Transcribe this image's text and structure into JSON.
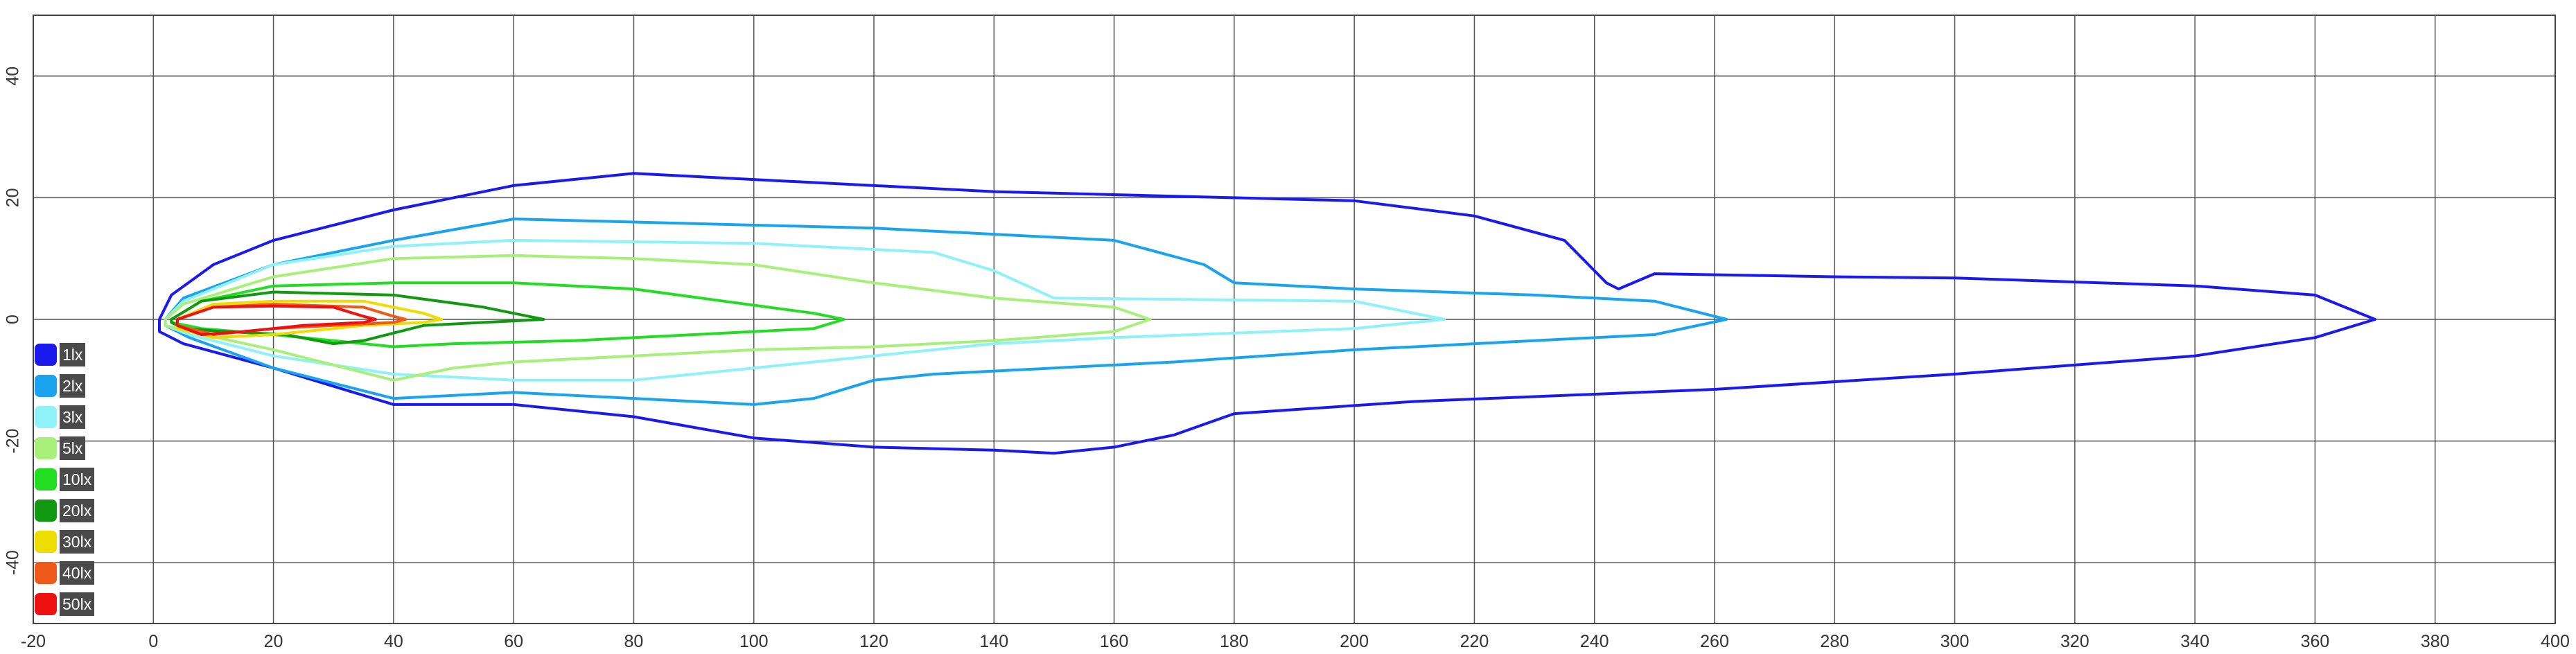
{
  "chart_data": {
    "type": "line",
    "title": "",
    "xlabel": "",
    "ylabel": "",
    "xlim": [
      -20,
      400
    ],
    "ylim": [
      -50,
      50
    ],
    "x_ticks": [
      -20,
      0,
      20,
      40,
      60,
      80,
      100,
      120,
      140,
      160,
      180,
      200,
      220,
      240,
      260,
      280,
      300,
      320,
      340,
      360,
      380,
      400
    ],
    "y_ticks": [
      40,
      20,
      0,
      -20,
      -40
    ],
    "grid": true,
    "legend_position": "bottom-left",
    "series": [
      {
        "name": "1lx",
        "color": "#1a1aee",
        "points": [
          [
            1,
            0
          ],
          [
            3,
            4
          ],
          [
            10,
            9
          ],
          [
            20,
            13
          ],
          [
            40,
            18
          ],
          [
            60,
            22
          ],
          [
            80,
            24
          ],
          [
            100,
            23
          ],
          [
            140,
            21
          ],
          [
            180,
            20
          ],
          [
            200,
            19.5
          ],
          [
            220,
            17
          ],
          [
            235,
            13
          ],
          [
            242,
            6
          ],
          [
            244,
            5
          ],
          [
            250,
            7.5
          ],
          [
            280,
            7
          ],
          [
            300,
            6.8
          ],
          [
            340,
            5.5
          ],
          [
            360,
            4
          ],
          [
            370,
            0
          ],
          [
            360,
            -3
          ],
          [
            340,
            -6
          ],
          [
            300,
            -9
          ],
          [
            260,
            -11.5
          ],
          [
            210,
            -13.5
          ],
          [
            180,
            -15.5
          ],
          [
            170,
            -19
          ],
          [
            160,
            -21
          ],
          [
            150,
            -22
          ],
          [
            140,
            -21.5
          ],
          [
            120,
            -21
          ],
          [
            100,
            -19.5
          ],
          [
            80,
            -16
          ],
          [
            60,
            -14
          ],
          [
            40,
            -14
          ],
          [
            20,
            -8
          ],
          [
            5,
            -4
          ],
          [
            1,
            -2
          ],
          [
            1,
            0
          ]
        ]
      },
      {
        "name": "2lx",
        "color": "#1aa3ee",
        "points": [
          [
            2,
            0
          ],
          [
            5,
            3.5
          ],
          [
            20,
            9
          ],
          [
            40,
            13
          ],
          [
            60,
            16.5
          ],
          [
            80,
            16
          ],
          [
            120,
            15
          ],
          [
            160,
            13
          ],
          [
            175,
            9
          ],
          [
            180,
            6
          ],
          [
            200,
            5
          ],
          [
            230,
            4
          ],
          [
            250,
            3
          ],
          [
            262,
            0
          ],
          [
            250,
            -2.5
          ],
          [
            220,
            -4
          ],
          [
            200,
            -5
          ],
          [
            170,
            -7
          ],
          [
            150,
            -8
          ],
          [
            130,
            -9
          ],
          [
            120,
            -10
          ],
          [
            110,
            -13
          ],
          [
            100,
            -14
          ],
          [
            80,
            -13
          ],
          [
            60,
            -12
          ],
          [
            40,
            -13
          ],
          [
            20,
            -8
          ],
          [
            6,
            -3
          ],
          [
            2,
            -1
          ],
          [
            2,
            0
          ]
        ]
      },
      {
        "name": "3lx",
        "color": "#8ef2f8",
        "points": [
          [
            2,
            0
          ],
          [
            5,
            3
          ],
          [
            20,
            9
          ],
          [
            40,
            12
          ],
          [
            60,
            13
          ],
          [
            100,
            12.5
          ],
          [
            130,
            11
          ],
          [
            140,
            8
          ],
          [
            150,
            3.5
          ],
          [
            200,
            3
          ],
          [
            215,
            0
          ],
          [
            200,
            -1.5
          ],
          [
            160,
            -3
          ],
          [
            140,
            -4
          ],
          [
            120,
            -6
          ],
          [
            100,
            -8
          ],
          [
            80,
            -10
          ],
          [
            60,
            -10
          ],
          [
            40,
            -9
          ],
          [
            20,
            -6
          ],
          [
            6,
            -2.5
          ],
          [
            2,
            -1
          ],
          [
            2,
            0
          ]
        ]
      },
      {
        "name": "5lx",
        "color": "#a8f07a",
        "points": [
          [
            2,
            0
          ],
          [
            5,
            2.5
          ],
          [
            20,
            7
          ],
          [
            40,
            10
          ],
          [
            60,
            10.5
          ],
          [
            80,
            10
          ],
          [
            100,
            9
          ],
          [
            120,
            6
          ],
          [
            140,
            3.5
          ],
          [
            160,
            2
          ],
          [
            166,
            0
          ],
          [
            160,
            -2
          ],
          [
            140,
            -3.5
          ],
          [
            120,
            -4.5
          ],
          [
            100,
            -5
          ],
          [
            80,
            -6
          ],
          [
            60,
            -7
          ],
          [
            50,
            -8
          ],
          [
            40,
            -10
          ],
          [
            20,
            -5
          ],
          [
            6,
            -2
          ],
          [
            2,
            -1
          ],
          [
            2,
            0
          ]
        ]
      },
      {
        "name": "10lx",
        "color": "#22dd22",
        "points": [
          [
            3,
            0
          ],
          [
            8,
            3
          ],
          [
            20,
            5.5
          ],
          [
            40,
            6
          ],
          [
            60,
            6
          ],
          [
            80,
            5
          ],
          [
            95,
            3
          ],
          [
            110,
            1
          ],
          [
            115,
            0
          ],
          [
            110,
            -1.5
          ],
          [
            90,
            -2.5
          ],
          [
            70,
            -3.5
          ],
          [
            50,
            -4
          ],
          [
            40,
            -4.5
          ],
          [
            30,
            -3.5
          ],
          [
            20,
            -2.5
          ],
          [
            8,
            -1.5
          ],
          [
            3,
            -0.5
          ],
          [
            3,
            0
          ]
        ]
      },
      {
        "name": "20lx",
        "color": "#119911",
        "points": [
          [
            3,
            0
          ],
          [
            8,
            3
          ],
          [
            20,
            4.5
          ],
          [
            40,
            4
          ],
          [
            55,
            2
          ],
          [
            65,
            0
          ],
          [
            55,
            -0.5
          ],
          [
            45,
            -1
          ],
          [
            35,
            -3.5
          ],
          [
            30,
            -4
          ],
          [
            22,
            -2.5
          ],
          [
            12,
            -2
          ],
          [
            5,
            -1.5
          ],
          [
            3,
            -0.5
          ],
          [
            3,
            0
          ]
        ]
      },
      {
        "name": "30lx",
        "color": "#eedd00",
        "points": [
          [
            4,
            0
          ],
          [
            10,
            2.5
          ],
          [
            20,
            3
          ],
          [
            35,
            3
          ],
          [
            45,
            1
          ],
          [
            48,
            0
          ],
          [
            45,
            -0.5
          ],
          [
            35,
            -1
          ],
          [
            30,
            -1.5
          ],
          [
            20,
            -2.5
          ],
          [
            10,
            -3
          ],
          [
            4,
            -1.5
          ],
          [
            4,
            0
          ]
        ]
      },
      {
        "name": "40lx",
        "color": "#ee5a1a",
        "points": [
          [
            4,
            0
          ],
          [
            10,
            2
          ],
          [
            20,
            2.5
          ],
          [
            35,
            2
          ],
          [
            40,
            0.5
          ],
          [
            42,
            0
          ],
          [
            40,
            -0.5
          ],
          [
            30,
            -1
          ],
          [
            20,
            -1.5
          ],
          [
            10,
            -2.5
          ],
          [
            4,
            -1
          ],
          [
            4,
            0
          ]
        ]
      },
      {
        "name": "50lx",
        "color": "#ee1111",
        "points": [
          [
            4,
            0
          ],
          [
            10,
            2
          ],
          [
            20,
            2.2
          ],
          [
            30,
            2
          ],
          [
            35,
            0.5
          ],
          [
            37,
            0
          ],
          [
            35,
            -0.5
          ],
          [
            25,
            -1
          ],
          [
            15,
            -2
          ],
          [
            8,
            -2.5
          ],
          [
            4,
            -1
          ],
          [
            4,
            0
          ]
        ]
      }
    ]
  }
}
